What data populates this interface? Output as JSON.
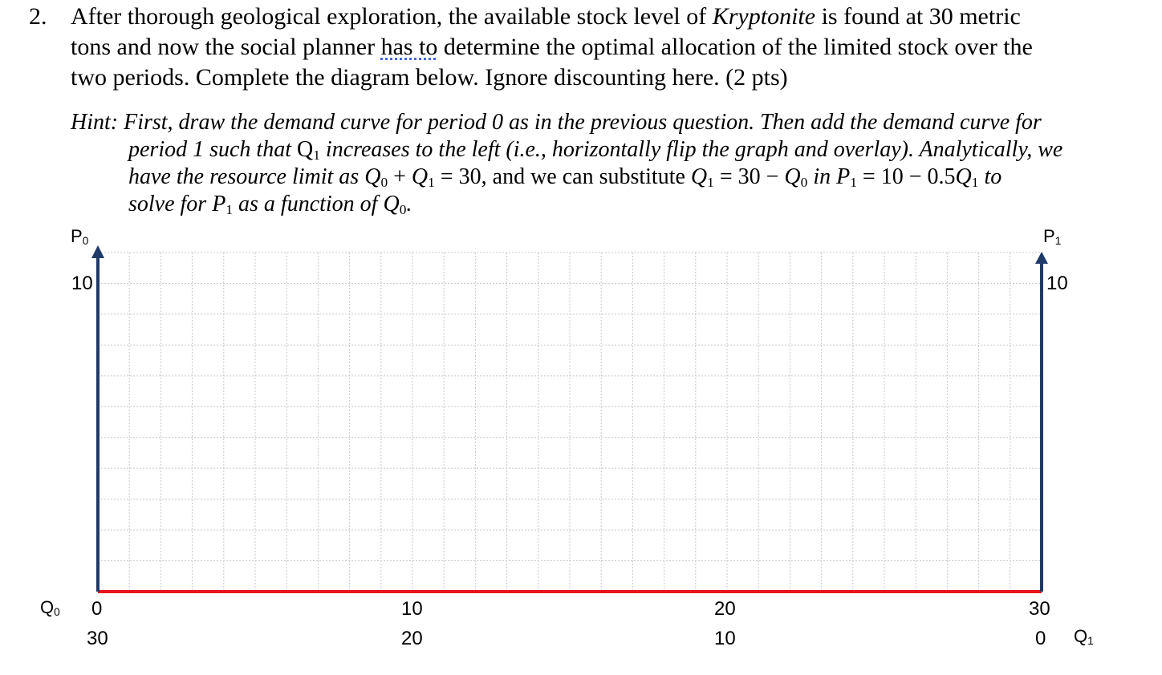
{
  "question": {
    "number": "2.",
    "line1_a": "After thorough geological exploration, the available stock level of ",
    "line1_em": "Kryptonite",
    "line1_b": " is found at 30 metric",
    "line2_a": "tons and now the social planner ",
    "line2_under": "has to",
    "line2_b": " determine the optimal allocation of the limited stock over the",
    "line3": "two periods. Complete the diagram below. Ignore discounting here. (2 pts)"
  },
  "hint": {
    "line1": "Hint: First, draw the demand curve for period 0 as in the previous question. Then add the demand curve for",
    "line2_a": "period 1 such that ",
    "line2_b": " increases to the left (i.e., horizontally flip the graph and overlay). Analytically, we",
    "line3_a": "have the resource limit as ",
    "line3_eq": " = 30, and we can substitute ",
    "line3_eq2": " = 30 − ",
    "line3_in": " in ",
    "line3_eq3": " = 10 − 0.5",
    "line3_to": " to",
    "line4_a": "solve for ",
    "line4_b": " as a function of ",
    "line4_c": "."
  },
  "symbols": {
    "Q": "Q",
    "P": "P",
    "plus": " + ",
    "sub0": "0",
    "sub1": "1"
  },
  "diagram": {
    "left_axis_label": "P",
    "left_axis_sub": "0",
    "right_axis_label": "P",
    "right_axis_sub": "1",
    "left_max": "10",
    "right_max": "10",
    "bottom_left_label": "Q",
    "bottom_left_sub": "0",
    "bottom_right_label": "Q",
    "bottom_right_sub": "1",
    "q0_ticks": [
      "0",
      "10",
      "20",
      "30"
    ],
    "q1_ticks": [
      "30",
      "20",
      "10",
      "0"
    ],
    "axis_color": "#1f3a68",
    "baseline_color": "#e8141c",
    "grid_color": "#c8c8c8"
  }
}
